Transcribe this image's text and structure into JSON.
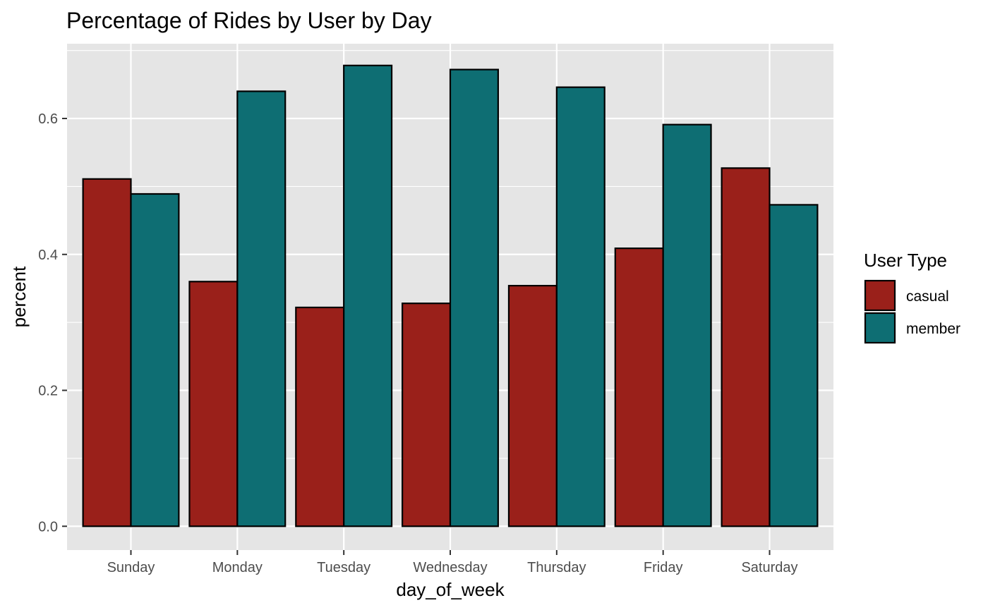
{
  "chart_data": {
    "type": "bar",
    "title": "Percentage of Rides by User by Day",
    "xlabel": "day_of_week",
    "ylabel": "percent",
    "ylim": [
      -0.035,
      0.71
    ],
    "yticks": [
      0.0,
      0.2,
      0.4,
      0.6
    ],
    "ytick_labels": [
      "0.0",
      "0.2",
      "0.4",
      "0.6"
    ],
    "categories": [
      "Sunday",
      "Monday",
      "Tuesday",
      "Wednesday",
      "Thursday",
      "Friday",
      "Saturday"
    ],
    "series": [
      {
        "name": "casual",
        "color": "#9a201a",
        "values": [
          0.511,
          0.36,
          0.322,
          0.328,
          0.354,
          0.409,
          0.527
        ]
      },
      {
        "name": "member",
        "color": "#0e6e73",
        "values": [
          0.489,
          0.64,
          0.678,
          0.672,
          0.646,
          0.591,
          0.473
        ]
      }
    ],
    "legend": {
      "title": "User Type",
      "placement": "right"
    },
    "grid": true,
    "panel_color": "#e5e5e5",
    "gridline_color": "#ffffff",
    "bar_outline_color": "#000000"
  }
}
